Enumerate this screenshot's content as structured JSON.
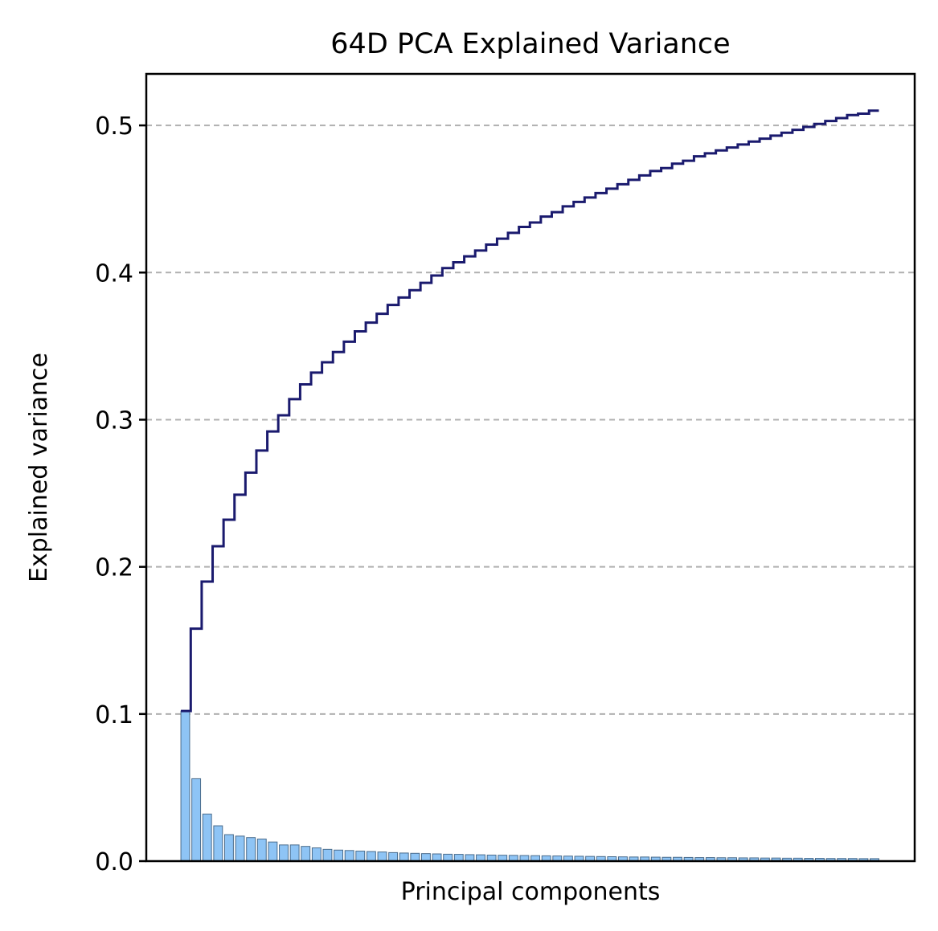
{
  "chart_data": {
    "type": "bar",
    "title": "64D PCA Explained Variance",
    "xlabel": "Principal components",
    "ylabel": "Explained variance",
    "ylim": [
      0,
      0.535
    ],
    "yticks": [
      "0.0",
      "0.1",
      "0.2",
      "0.3",
      "0.4",
      "0.5"
    ],
    "grid": "y-dashed",
    "colors": {
      "bar_fill": "#8ec4f5",
      "bar_edge": "#4a6c8c",
      "cumulative_line": "#1a1a6e",
      "grid": "#b0b0b0"
    },
    "bars": [
      0.102,
      0.056,
      0.032,
      0.024,
      0.018,
      0.017,
      0.016,
      0.015,
      0.013,
      0.011,
      0.011,
      0.01,
      0.009,
      0.008,
      0.0075,
      0.0072,
      0.0068,
      0.0065,
      0.0062,
      0.0058,
      0.0055,
      0.0053,
      0.0051,
      0.0049,
      0.0047,
      0.0046,
      0.0044,
      0.0043,
      0.0041,
      0.004,
      0.0039,
      0.0038,
      0.0037,
      0.0036,
      0.0035,
      0.0034,
      0.0033,
      0.0032,
      0.0031,
      0.003,
      0.0029,
      0.0028,
      0.0028,
      0.0027,
      0.0026,
      0.0026,
      0.0025,
      0.0024,
      0.0024,
      0.0023,
      0.0023,
      0.0022,
      0.0022,
      0.0021,
      0.0021,
      0.002,
      0.002,
      0.0019,
      0.0019,
      0.0018,
      0.0018,
      0.0018,
      0.0017,
      0.0017
    ],
    "cumulative": [
      0.102,
      0.158,
      0.19,
      0.214,
      0.232,
      0.249,
      0.264,
      0.279,
      0.292,
      0.303,
      0.314,
      0.324,
      0.332,
      0.339,
      0.346,
      0.353,
      0.36,
      0.366,
      0.372,
      0.378,
      0.383,
      0.388,
      0.393,
      0.398,
      0.403,
      0.407,
      0.411,
      0.415,
      0.419,
      0.423,
      0.427,
      0.431,
      0.434,
      0.438,
      0.441,
      0.445,
      0.448,
      0.451,
      0.454,
      0.457,
      0.46,
      0.463,
      0.466,
      0.469,
      0.471,
      0.474,
      0.476,
      0.479,
      0.481,
      0.483,
      0.485,
      0.487,
      0.489,
      0.491,
      0.493,
      0.495,
      0.497,
      0.499,
      0.501,
      0.503,
      0.505,
      0.507,
      0.508,
      0.51
    ]
  }
}
